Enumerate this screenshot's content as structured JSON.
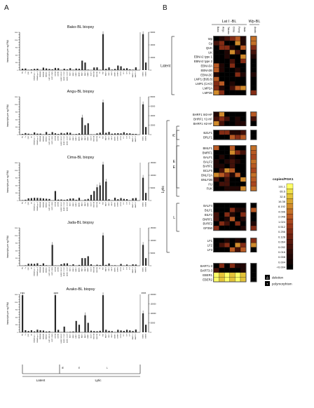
{
  "panels": {
    "a": "A",
    "b": "B"
  },
  "panel_a": {
    "ylabel": "transcripts per ng RNA",
    "charts": [
      {
        "title": "Bako-BL biopsy",
        "left_ticks": [
          "0",
          "100",
          "200",
          "300",
          "400",
          "500",
          "600",
          "700",
          "800",
          "900",
          "1000",
          "1100",
          "1200",
          "1300",
          "1400",
          "1500"
        ],
        "right_ticks": [
          "0",
          "20000",
          "40000",
          "60000"
        ]
      },
      {
        "title": "Angu-BL biopsy",
        "left_ticks": [
          "0",
          "100",
          "200",
          "300",
          "400",
          "500",
          "600",
          "700",
          "800",
          "900",
          "1000",
          "1100",
          "1200",
          "1300",
          "1400",
          "1500"
        ],
        "right_ticks": [
          "0",
          "20000",
          "40000",
          "60000",
          "80000"
        ]
      },
      {
        "title": "Cima-BL biopsy",
        "left_ticks": [
          "0",
          "100",
          "200",
          "300",
          "400",
          "500",
          "600",
          "700",
          "800",
          "900",
          "1000",
          "1100",
          "1200",
          "1300",
          "1400",
          "1500"
        ],
        "right_ticks": [
          "0",
          "50000",
          "100000",
          "150000"
        ]
      },
      {
        "title": "Jada-BL biopsy",
        "left_ticks": [
          "0",
          "100",
          "200",
          "300",
          "400",
          "500",
          "600",
          "700",
          "800",
          "900",
          "1000",
          "1100",
          "1200",
          "1300",
          "1400",
          "1500"
        ],
        "right_ticks": [
          "0",
          "50000",
          "100000",
          "150000"
        ]
      },
      {
        "title": "Avako-BL biopsy",
        "left_ticks": [
          "0",
          "100",
          "200",
          "300",
          "400",
          "500",
          "600",
          "700",
          "800",
          "900",
          "1000",
          "1100",
          "1200",
          "1300",
          "1400",
          "1500"
        ],
        "right_ticks": [
          "0",
          "50000",
          "100000",
          "150000",
          "200000"
        ],
        "top_values": [
          "3721",
          "2400",
          "9565"
        ]
      }
    ],
    "categories": [
      "Wp",
      "Cp",
      "QUK",
      "UK",
      "EBNA2 type 1",
      "EBNA2 type 2",
      "EBNA3A",
      "EBNA3B",
      "EBNA3C",
      "LMP1 (B95.8)",
      "LMP1 (CAO)",
      "LMP2A",
      "LMP2B",
      "BHRF1 W2-HF",
      "BHRF1 Y2-HF",
      "BHRF1 H2-HF",
      "BZLF1",
      "BRLF1",
      "BMLF1",
      "BMRF1",
      "BALF1",
      "BALF2",
      "BARF1",
      "BCLF5",
      "BNLF2A",
      "BNLF2B",
      "FU",
      "FUK",
      "BALF4",
      "BILF1",
      "BILF2",
      "BNRF1",
      "BVRF2",
      "GP350",
      "LF1",
      "LF2",
      "LF3",
      "BART1-3",
      "BART3-3",
      "EBER1",
      "EBER2"
    ],
    "group_labels": [
      "Latent",
      "Lytic",
      "IE",
      "E",
      "L"
    ]
  },
  "panel_b": {
    "header_main": "Lat I -BL",
    "header_wp": "Wp-BL",
    "columns": [
      "Bako",
      "Angu",
      "Tatumo",
      "Cima",
      "Fierry",
      "Jada"
    ],
    "wp_column": "Avako",
    "rows": [
      "Wp",
      "Cp",
      "QUK",
      "UK",
      "EBNA2 type 1",
      "EBNA2 type 2",
      "EBNA3A",
      "EBNA3B",
      "EBNA3C",
      "LMP1 (B95.8)",
      "LMP1 (CAO)",
      "LMP2A",
      "LMP2B",
      "BHRF1 W2-HF",
      "BHRF1 Y2-HF",
      "BHRF1 H2-HF",
      "BZLF1",
      "BRLF1",
      "BMLF1",
      "BMRF1",
      "BALF1",
      "BALF2",
      "BARF1",
      "BCLF5",
      "BNLF2A",
      "BNLF2B",
      "FU",
      "FUK",
      "BALF4",
      "BILF1",
      "BILF2",
      "BNRF1",
      "BVRF2",
      "GP350",
      "LF1",
      "LF2",
      "LF3",
      "BART1-3",
      "BART3-3",
      "EBER1",
      "EBER2"
    ],
    "groups": {
      "latent": "Latent",
      "lytic": "Lytic",
      "ie": "IE",
      "e": "E",
      "l": "L",
      "e_small": "E"
    },
    "legend": {
      "title": "copies/PGK1",
      "values": [
        "131.1",
        "65.5",
        "32.8",
        "16.38",
        "8.192",
        "4.096",
        "2.048",
        "1.024",
        "0.512",
        "0.256",
        "0.128",
        "0.064",
        "0.032",
        "0.016",
        "0.008",
        "0.004",
        "<0.004"
      ],
      "colors": [
        "#ffff66",
        "#f0e04a",
        "#e3c238",
        "#d9a52f",
        "#d08a2b",
        "#c47027",
        "#b85923",
        "#a9461e",
        "#973719",
        "#832b14",
        "#6e2110",
        "#59180c",
        "#441109",
        "#300b06",
        "#200604",
        "#130302",
        "#000000"
      ],
      "notes": [
        {
          "symbol": "Δ",
          "text": "deletion"
        },
        {
          "symbol": "+",
          "text": "polymorphism"
        }
      ]
    }
  }
}
